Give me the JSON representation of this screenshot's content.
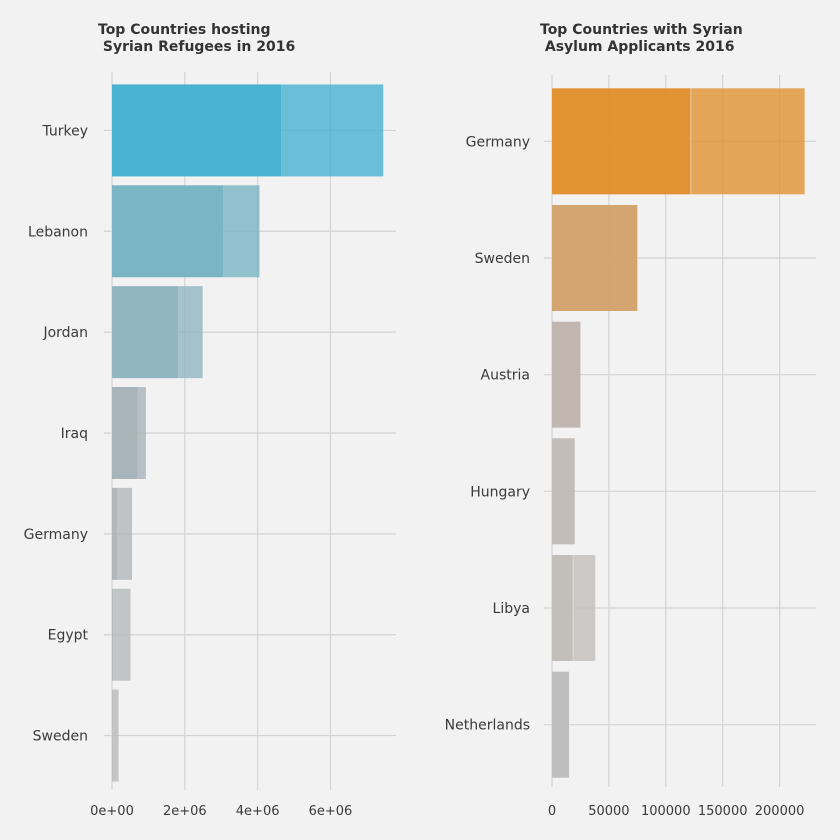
{
  "chart_data": [
    {
      "type": "bar",
      "orientation": "horizontal",
      "title": "Top Countries hosting\n Syrian Refugees in 2016",
      "categories": [
        "Turkey",
        "Lebanon",
        "Jordan",
        "Iraq",
        "Germany",
        "Egypt",
        "Sweden"
      ],
      "series": [
        {
          "values": [
            4650000,
            3050000,
            1820000,
            700000,
            140000,
            30000,
            10000
          ]
        },
        {
          "values": [
            2800000,
            1000000,
            670000,
            230000,
            410000,
            480000,
            170000
          ]
        }
      ],
      "totals": [
        7450000,
        4050000,
        2490000,
        930000,
        550000,
        510000,
        180000
      ],
      "colors": [
        "#45afd0",
        "#77b4c4",
        "#8fb5c0",
        "#a5b2b8",
        "#b1b6b9",
        "#b5b8ba",
        "#b7b8b9"
      ],
      "xlim": [
        0,
        7800000
      ],
      "xticks": [
        0,
        2000000,
        4000000,
        6000000
      ],
      "xtick_labels": [
        "0e+00",
        "2e+06",
        "4e+06",
        "6e+06"
      ],
      "grid": true
    },
    {
      "type": "bar",
      "orientation": "horizontal",
      "title": "Top Countries with Syrian\n Asylum Applicants 2016",
      "categories": [
        "Germany",
        "Sweden",
        "Austria",
        "Hungary",
        "Libya",
        "Netherlands"
      ],
      "series": [
        {
          "values": [
            122000,
            75000,
            25000,
            20000,
            18500,
            15000
          ]
        },
        {
          "values": [
            100000,
            0,
            0,
            0,
            19500,
            0
          ]
        }
      ],
      "totals": [
        222000,
        75000,
        25000,
        20000,
        38000,
        15000
      ],
      "colors": [
        "#e0902e",
        "#d2a36e",
        "#c1b6ae",
        "#c1bcb8",
        "#c1bdb9",
        "#bebdbd"
      ],
      "xlim": [
        0,
        232000
      ],
      "xticks": [
        0,
        50000,
        100000,
        150000,
        200000
      ],
      "xtick_labels": [
        "0",
        "50000",
        "100000",
        "150000",
        "200000"
      ],
      "grid": true
    }
  ]
}
